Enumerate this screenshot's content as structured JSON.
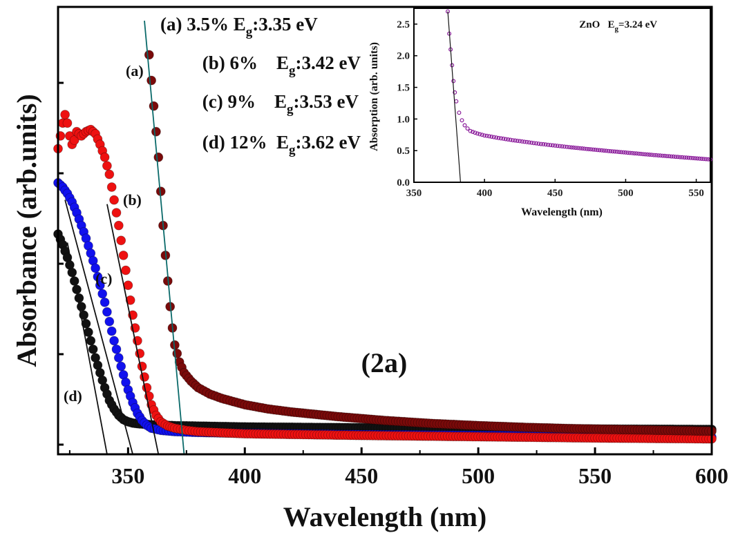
{
  "chart_data": [
    {
      "type": "scatter",
      "panel_label": "(2a)",
      "xlabel": "Wavelength (nm)",
      "ylabel": "Absorbance (arb.units)",
      "xlim": [
        320,
        600
      ],
      "ylim": [
        0,
        1
      ],
      "xticks": [
        350,
        400,
        450,
        500,
        550,
        600
      ],
      "y_tick_labels_shown": false,
      "legend": [
        {
          "label": "(a)",
          "text": "3.5% ",
          "eg_prefix": "E",
          "eg_sub": "g",
          "eg_value": ":3.35 eV"
        },
        {
          "label": "(b)",
          "text": "6%    ",
          "eg_prefix": "E",
          "eg_sub": "g",
          "eg_value": ":3.42 eV"
        },
        {
          "label": "(c)",
          "text": "9%    ",
          "eg_prefix": "E",
          "eg_sub": "g",
          "eg_value": ":3.53 eV"
        },
        {
          "label": "(d)",
          "text": "12%  ",
          "eg_prefix": "E",
          "eg_sub": "g",
          "eg_value": ":3.62 eV"
        }
      ],
      "series": [
        {
          "name": "(a)",
          "color": "#7a0a0a",
          "x": [
            359,
            361,
            363,
            364,
            365,
            366,
            367,
            368,
            369,
            370,
            372,
            374,
            377,
            380,
            385,
            390,
            400,
            410,
            420,
            440,
            460,
            480,
            500,
            520,
            540,
            560,
            580,
            600
          ],
          "y": [
            0.92,
            0.8,
            0.68,
            0.6,
            0.52,
            0.45,
            0.39,
            0.33,
            0.28,
            0.24,
            0.2,
            0.175,
            0.155,
            0.14,
            0.125,
            0.115,
            0.1,
            0.09,
            0.083,
            0.072,
            0.063,
            0.056,
            0.051,
            0.047,
            0.044,
            0.042,
            0.04,
            0.038
          ],
          "tangent": {
            "x1": 374,
            "y1": 0.0,
            "x2": 357,
            "y2": 1.0
          }
        },
        {
          "name": "(b)",
          "color": "#ee1111",
          "x": [
            320,
            321,
            322,
            323,
            324,
            325,
            326,
            327,
            328,
            330,
            332,
            334,
            336,
            338,
            340,
            342,
            344,
            346,
            348,
            350,
            352,
            354,
            356,
            358,
            360,
            362,
            364,
            367,
            370,
            375,
            380,
            400,
            450,
            500,
            550,
            600
          ],
          "y": [
            0.7,
            0.73,
            0.76,
            0.78,
            0.76,
            0.73,
            0.71,
            0.72,
            0.74,
            0.73,
            0.74,
            0.745,
            0.735,
            0.71,
            0.68,
            0.64,
            0.58,
            0.52,
            0.45,
            0.38,
            0.31,
            0.25,
            0.19,
            0.14,
            0.1,
            0.075,
            0.06,
            0.05,
            0.045,
            0.04,
            0.037,
            0.032,
            0.028,
            0.025,
            0.022,
            0.02
          ],
          "tangent": {
            "x1": 363,
            "y1": 0.0,
            "x2": 341,
            "y2": 0.57
          }
        },
        {
          "name": "(c)",
          "color": "#1111ee",
          "x": [
            320,
            322,
            324,
            326,
            328,
            330,
            332,
            334,
            336,
            338,
            340,
            342,
            344,
            346,
            348,
            350,
            352,
            354,
            356,
            358,
            360,
            364,
            370,
            380,
            400,
            450,
            500,
            550,
            600
          ],
          "y": [
            0.62,
            0.61,
            0.595,
            0.575,
            0.55,
            0.52,
            0.49,
            0.455,
            0.42,
            0.38,
            0.34,
            0.295,
            0.25,
            0.21,
            0.17,
            0.135,
            0.105,
            0.08,
            0.063,
            0.052,
            0.045,
            0.04,
            0.037,
            0.035,
            0.033,
            0.03,
            0.028,
            0.026,
            0.024
          ],
          "tangent": {
            "x1": 352,
            "y1": 0.0,
            "x2": 323,
            "y2": 0.58
          }
        },
        {
          "name": "(d)",
          "color": "#111111",
          "x": [
            320,
            322,
            324,
            326,
            328,
            330,
            332,
            334,
            336,
            338,
            340,
            342,
            344,
            346,
            348,
            350,
            352,
            355,
            360,
            370,
            380,
            400,
            450,
            500,
            550,
            600
          ],
          "y": [
            0.5,
            0.475,
            0.445,
            0.41,
            0.37,
            0.33,
            0.29,
            0.25,
            0.21,
            0.175,
            0.14,
            0.11,
            0.09,
            0.075,
            0.065,
            0.06,
            0.057,
            0.055,
            0.053,
            0.051,
            0.05,
            0.048,
            0.046,
            0.044,
            0.043,
            0.042
          ],
          "tangent": {
            "x1": 341,
            "y1": 0.0,
            "x2": 324,
            "y2": 0.48
          }
        }
      ]
    },
    {
      "type": "scatter",
      "inset": true,
      "title_prefix": "ZnO   E",
      "title_sub": "g",
      "title_value": "=3.24 eV",
      "xlabel": "Wavelength (nm)",
      "ylabel": "Absorption (arb. units)",
      "xlim": [
        350,
        560
      ],
      "ylim": [
        0,
        2.75
      ],
      "xticks": [
        350,
        400,
        450,
        500,
        550
      ],
      "yticks": [
        0.0,
        0.5,
        1.0,
        1.5,
        2.0,
        2.5
      ],
      "ytick_labels": [
        "0.0",
        "0.5",
        "1.0",
        "1.5",
        "2.0",
        "2.5"
      ],
      "series": [
        {
          "name": "ZnO",
          "color": "#8a1a9a",
          "x": [
            374,
            375,
            376,
            377,
            378,
            379,
            380,
            382,
            384,
            386,
            388,
            390,
            395,
            400,
            410,
            420,
            430,
            440,
            450,
            460,
            480,
            500,
            520,
            540,
            560
          ],
          "y": [
            2.7,
            2.35,
            2.1,
            1.85,
            1.6,
            1.42,
            1.28,
            1.1,
            0.98,
            0.9,
            0.85,
            0.81,
            0.77,
            0.74,
            0.7,
            0.665,
            0.635,
            0.605,
            0.58,
            0.555,
            0.51,
            0.47,
            0.43,
            0.395,
            0.36
          ],
          "tangent": {
            "x1": 374,
            "y1": 2.7,
            "x2": 383,
            "y2": 0.0
          }
        }
      ]
    }
  ]
}
